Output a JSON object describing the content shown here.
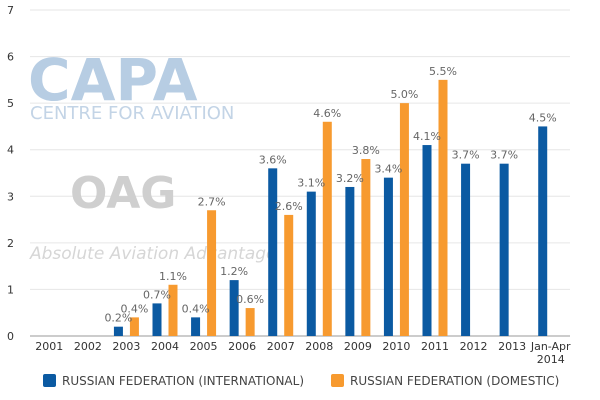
{
  "watermarks": {
    "capa_logo": "CAPA",
    "capa_sub": "CENTRE FOR AVIATION",
    "oag_logo": "OAG",
    "oag_sub": "Absolute Aviation Advantage"
  },
  "colors": {
    "international": "#0b5aa2",
    "domestic": "#f79a2f",
    "grid": "#e6e6e6",
    "axis": "#999999"
  },
  "chart_data": {
    "type": "bar",
    "title": "",
    "xlabel": "",
    "ylabel": "",
    "ylim": [
      0,
      7
    ],
    "yticks": [
      0,
      1,
      2,
      3,
      4,
      5,
      6,
      7
    ],
    "grid": true,
    "legend_position": "bottom",
    "categories": [
      "2001",
      "2002",
      "2003",
      "2004",
      "2005",
      "2006",
      "2007",
      "2008",
      "2009",
      "2010",
      "2011",
      "2012",
      "2013",
      "Jan-Apr 2014"
    ],
    "series": [
      {
        "name": "RUSSIAN FEDERATION (INTERNATIONAL)",
        "color": "#0b5aa2",
        "values": [
          null,
          null,
          0.2,
          0.7,
          0.4,
          1.2,
          3.6,
          3.1,
          3.2,
          3.4,
          4.1,
          3.7,
          3.7,
          4.5
        ],
        "labels": [
          null,
          null,
          "0.2%",
          "0.7%",
          "0.4%",
          "1.2%",
          "3.6%",
          "3.1%",
          "3.2%",
          "3.4%",
          "4.1%",
          "3.7%",
          "3.7%",
          "4.5%"
        ]
      },
      {
        "name": "RUSSIAN FEDERATION (DOMESTIC)",
        "color": "#f79a2f",
        "values": [
          null,
          null,
          0.4,
          1.1,
          2.7,
          0.6,
          2.6,
          4.6,
          3.8,
          5.0,
          5.5,
          null,
          null,
          null
        ],
        "labels": [
          null,
          null,
          "0.4%",
          "1.1%",
          "2.7%",
          "0.6%",
          "2.6%",
          "4.6%",
          "3.8%",
          "5.0%",
          "5.5%",
          null,
          null,
          null
        ]
      }
    ]
  }
}
